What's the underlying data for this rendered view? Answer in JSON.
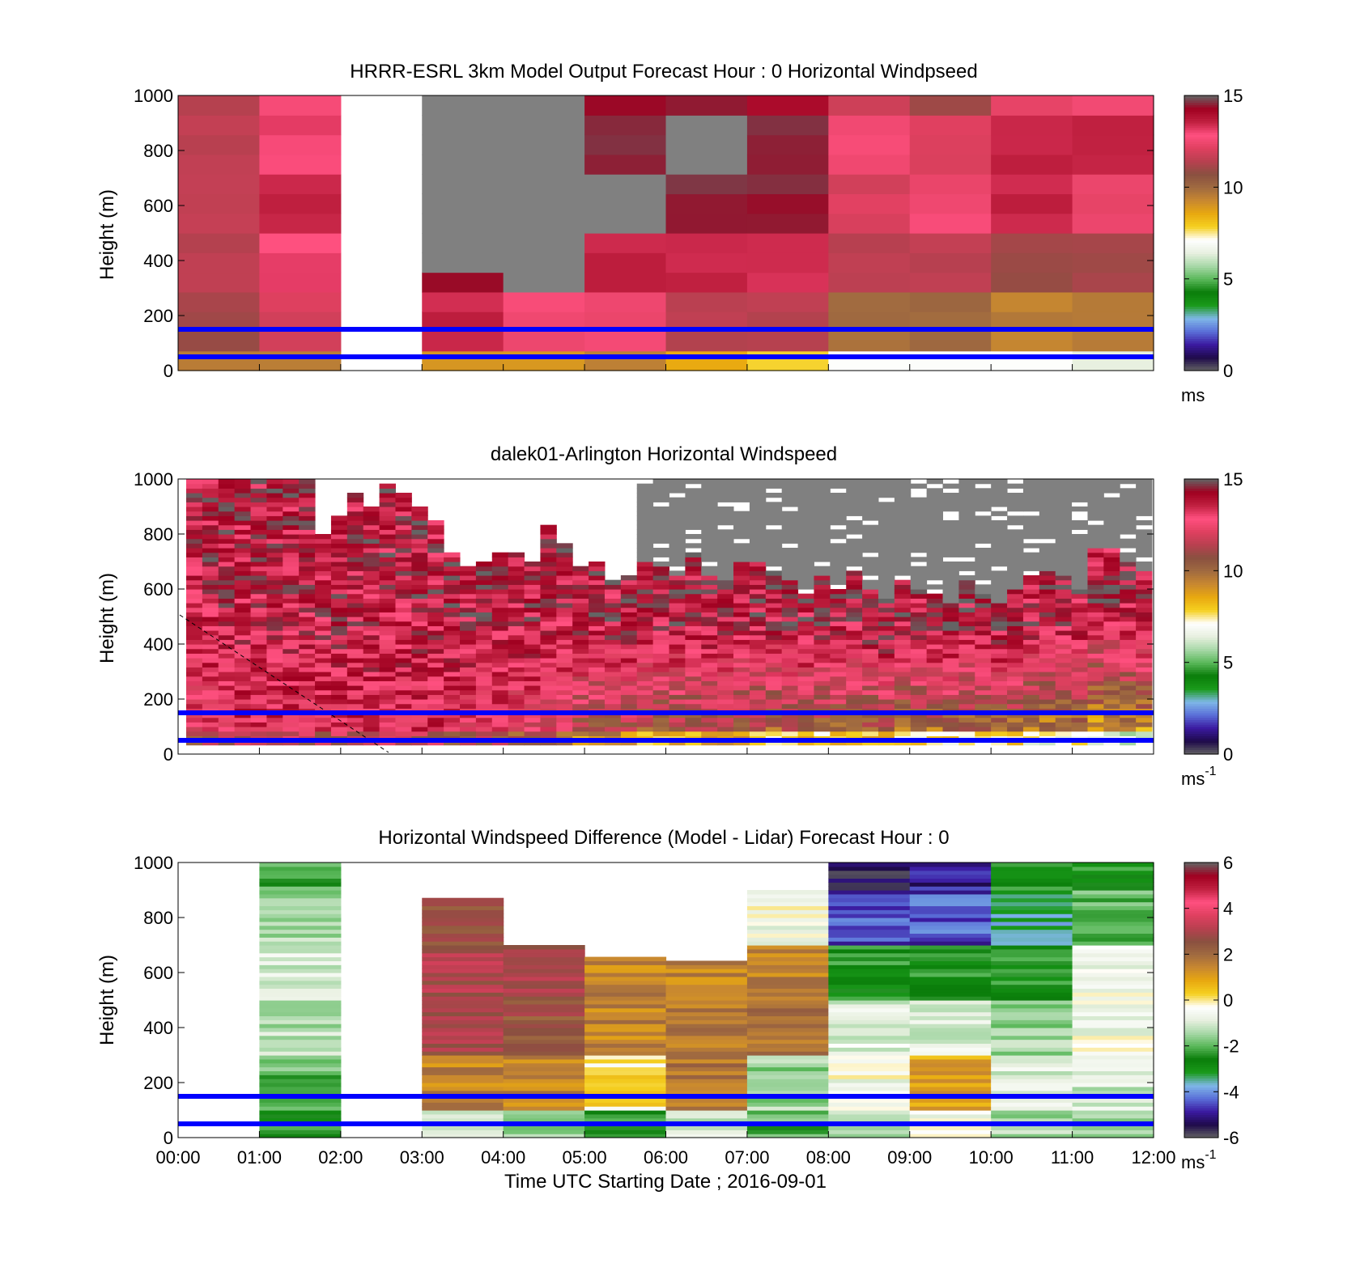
{
  "figure": {
    "xlabel": "Time UTC  Starting Date ; 2016-09-01",
    "xticks": [
      "00:00",
      "01:00",
      "02:00",
      "03:00",
      "04:00",
      "05:00",
      "06:00",
      "07:00",
      "08:00",
      "09:00",
      "10:00",
      "11:00",
      "12:00"
    ],
    "yticks": [
      "0",
      "200",
      "400",
      "600",
      "800",
      "1000"
    ],
    "reference_lines_m": [
      50,
      150
    ],
    "reference_line_color": "#0000ff",
    "colors": {
      "speed_scale": [
        "#646464",
        "#1e0a4a",
        "#3b1aa0",
        "#5a6ed8",
        "#7fb8e8",
        "#1a9a1a",
        "#0a7d0a",
        "#5ab85a",
        "#a8d8a8",
        "#e8f0e0",
        "#ffffff",
        "#f5d020",
        "#e8a810",
        "#c88830",
        "#a06a40",
        "#8a5040",
        "#b84050",
        "#e04060",
        "#ff5080",
        "#c02040",
        "#a00020",
        "#646464"
      ],
      "diff_scale": [
        "#646464",
        "#1e0a4a",
        "#3b1aa0",
        "#5a6ed8",
        "#7fb8e8",
        "#1a9a1a",
        "#0a7d0a",
        "#5ab85a",
        "#a8d8a8",
        "#e8f0e0",
        "#ffffff",
        "#f5d020",
        "#e8a810",
        "#c88830",
        "#a06a40",
        "#8a5040",
        "#b84050",
        "#e04060",
        "#ff5080",
        "#c02040",
        "#a00020",
        "#646464"
      ],
      "missing_above_range": "#808080"
    }
  },
  "chart_data": [
    {
      "type": "heatmap",
      "title": "HRRR-ESRL 3km Model Output   Forecast Hour : 0 Horizontal Windpseed",
      "xlabel": "",
      "ylabel": "Height (m)",
      "ylim": [
        0,
        1000
      ],
      "xlim": [
        "00:00",
        "12:00"
      ],
      "colorbar": {
        "min": 0,
        "max": 15,
        "ticks": [
          "0",
          "5",
          "10",
          "15"
        ],
        "unit": "ms",
        "unit_sup": ""
      },
      "hourly_profiles_ms": [
        {
          "hour": "00:00",
          "top_m": 1000,
          "speeds": [
            9.5,
            11.0,
            11.5,
            11.5,
            11.5,
            11.5
          ]
        },
        {
          "hour": "01:00",
          "top_m": 1000,
          "speeds": [
            9.5,
            12.0,
            13.0,
            13.5,
            13.0,
            12.5
          ]
        },
        {
          "hour": "02:00",
          "top_m": 0,
          "speeds": []
        },
        {
          "hour": "03:00",
          "top_m": 300,
          "speeds": [
            9.0,
            13.5,
            14.5,
            null,
            null,
            null
          ]
        },
        {
          "hour": "04:00",
          "top_m": 250,
          "speeds": [
            9.0,
            12.5,
            14.5,
            null,
            null,
            null
          ]
        },
        {
          "hour": "05:00",
          "top_m": 1000,
          "speeds": [
            9.5,
            12.5,
            13.5,
            null,
            14.5,
            14.5
          ]
        },
        {
          "hour": "06:00",
          "top_m": 1000,
          "speeds": [
            8.5,
            11.5,
            13.5,
            14.5,
            null,
            14.5
          ]
        },
        {
          "hour": "07:00",
          "top_m": 1000,
          "speeds": [
            8.0,
            11.5,
            13.5,
            14.5,
            14.5,
            14.0
          ]
        },
        {
          "hour": "08:00",
          "top_m": 1000,
          "speeds": [
            7.0,
            10.0,
            11.5,
            12.0,
            12.5,
            12.0
          ]
        },
        {
          "hour": "09:00",
          "top_m": 1000,
          "speeds": [
            7.0,
            10.0,
            11.5,
            12.5,
            12.0,
            11.0
          ]
        },
        {
          "hour": "10:00",
          "top_m": 1000,
          "speeds": [
            7.0,
            9.5,
            11.0,
            13.5,
            13.5,
            12.5
          ]
        },
        {
          "hour": "11:00",
          "top_m": 1000,
          "speeds": [
            6.5,
            9.5,
            11.0,
            12.5,
            13.5,
            12.5
          ]
        }
      ]
    },
    {
      "type": "heatmap",
      "title": "dalek01-Arlington  Horizontal Windspeed",
      "xlabel": "",
      "ylabel": "Height (m)",
      "ylim": [
        0,
        1000
      ],
      "xlim": [
        "00:00",
        "12:00"
      ],
      "colorbar": {
        "min": 0,
        "max": 15,
        "ticks": [
          "0",
          "5",
          "10",
          "15"
        ],
        "unit": "ms",
        "unit_sup": "-1"
      },
      "columns_per_hour": 4,
      "profile_tops_m": [
        1000,
        1000,
        1000,
        1000,
        1000,
        1000,
        1000,
        1000,
        800,
        860,
        940,
        900,
        980,
        950,
        900,
        850,
        720,
        680,
        700,
        720,
        720,
        700,
        820,
        760,
        680,
        700,
        620,
        640,
        700,
        680,
        650,
        720,
        640,
        620,
        700,
        700,
        660,
        620,
        580,
        640,
        590,
        660,
        600,
        560,
        630,
        600,
        580,
        540,
        620,
        580,
        550,
        590,
        640,
        660,
        650,
        600,
        740,
        740,
        700,
        660
      ],
      "low_level_speed_ms": [
        12.5,
        12.5,
        13,
        13,
        13,
        13,
        13,
        13,
        13,
        13,
        13,
        13,
        13,
        13,
        13,
        13,
        12.5,
        12.5,
        12.5,
        12.5,
        12,
        12,
        12,
        12,
        10.5,
        10.5,
        10.5,
        10.5,
        10,
        10,
        10,
        10,
        10,
        10,
        10,
        10,
        9.5,
        9.5,
        9.5,
        9.5,
        9.5,
        9.5,
        9.5,
        9.5,
        9,
        9,
        9,
        9,
        9,
        9,
        9,
        9,
        8.5,
        8.5,
        8.5,
        8.5,
        8,
        8,
        8,
        8
      ]
    },
    {
      "type": "heatmap",
      "title": "Horizontal Windspeed Difference (Model - Lidar) Forecast Hour : 0",
      "xlabel": "Time UTC  Starting Date ; 2016-09-01",
      "ylabel": "Height (m)",
      "ylim": [
        0,
        1000
      ],
      "xlim": [
        "00:00",
        "12:00"
      ],
      "colorbar": {
        "min": -6,
        "max": 6,
        "ticks": [
          "-6",
          "-4",
          "-2",
          "0",
          "2",
          "4",
          "6"
        ],
        "unit": "ms",
        "unit_sup": "-1"
      },
      "hourly_profiles_ms": [
        {
          "hour": "00:00",
          "top_m": 0,
          "speeds": []
        },
        {
          "hour": "01:00",
          "top_m": 1000,
          "speeds": [
            -2.5,
            -2.0,
            -1.2,
            -1.0,
            -1.5,
            -2.0
          ]
        },
        {
          "hour": "02:00",
          "top_m": 0,
          "speeds": []
        },
        {
          "hour": "03:00",
          "top_m": 870,
          "speeds": [
            -1.0,
            1.5,
            2.8,
            3.0,
            2.5,
            null
          ]
        },
        {
          "hour": "04:00",
          "top_m": 690,
          "speeds": [
            -1.5,
            1.5,
            2.5,
            2.8,
            null,
            null
          ]
        },
        {
          "hour": "05:00",
          "top_m": 650,
          "speeds": [
            -2.0,
            0.0,
            1.5,
            1.5,
            null,
            null
          ]
        },
        {
          "hour": "06:00",
          "top_m": 640,
          "speeds": [
            -1.0,
            1.8,
            1.8,
            1.5,
            null,
            null
          ]
        },
        {
          "hour": "07:00",
          "top_m": 900,
          "speeds": [
            -2.0,
            -1.5,
            1.8,
            1.5,
            -0.5,
            null
          ]
        },
        {
          "hour": "08:00",
          "top_m": 1000,
          "speeds": [
            -1.5,
            -0.5,
            -0.8,
            -2.5,
            -4.5,
            -5.5
          ]
        },
        {
          "hour": "09:00",
          "top_m": 1000,
          "speeds": [
            -0.5,
            1.0,
            -1.0,
            -2.5,
            -4.5,
            -5.0
          ]
        },
        {
          "hour": "10:00",
          "top_m": 1000,
          "speeds": [
            -1.5,
            -1.0,
            -1.5,
            -2.5,
            -3.5,
            -2.5
          ]
        },
        {
          "hour": "11:00",
          "top_m": 1000,
          "speeds": [
            -1.5,
            -1.0,
            -0.5,
            -0.5,
            -2.0,
            -2.5
          ]
        }
      ]
    }
  ]
}
